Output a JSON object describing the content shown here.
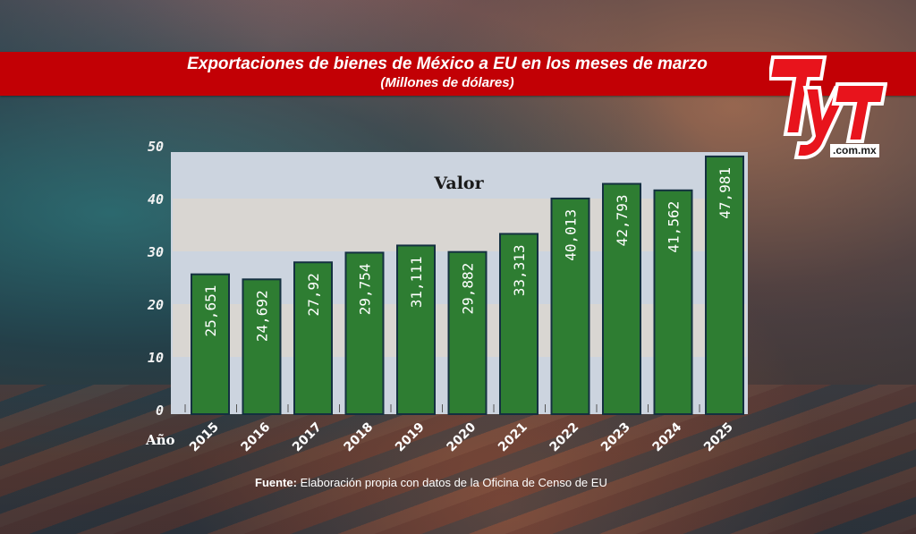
{
  "header": {
    "title": "Exportaciones de bienes de México a EU en los meses de marzo",
    "subtitle": "(Millones de dólares)"
  },
  "logo": {
    "text": "TyT",
    "url": ".com.mx"
  },
  "footer": {
    "label": "Fuente:",
    "text": " Elaboración propia con datos de la Oficina de Censo de EU"
  },
  "colors": {
    "banner": "#c20005",
    "bar": "#2e7d32",
    "bar_border": "#143040",
    "panel": "#ccd4df",
    "band_alt": "#d9d6d2"
  },
  "chart_data": {
    "type": "bar",
    "title": "Valor",
    "xlabel": "Año",
    "ylabel": "",
    "categories": [
      "2015",
      "2016",
      "2017",
      "2018",
      "2019",
      "2020",
      "2021",
      "2022",
      "2023",
      "2024",
      "2025"
    ],
    "values": [
      25.651,
      24.692,
      27.92,
      29.754,
      31.111,
      29.882,
      33.313,
      40.013,
      42.793,
      41.562,
      47.981
    ],
    "data_labels": [
      "25,651",
      "24,692",
      "27,92",
      "29,754",
      "31,111",
      "29,882",
      "33,313",
      "40,013",
      "42,793",
      "41,562",
      "47,981"
    ],
    "ylim": [
      0,
      50
    ],
    "yticks": [
      "0",
      "10",
      "20",
      "30",
      "40",
      "50"
    ],
    "ytick_values": [
      0,
      10,
      20,
      30,
      40,
      50
    ],
    "grid": false,
    "legend": "none"
  }
}
